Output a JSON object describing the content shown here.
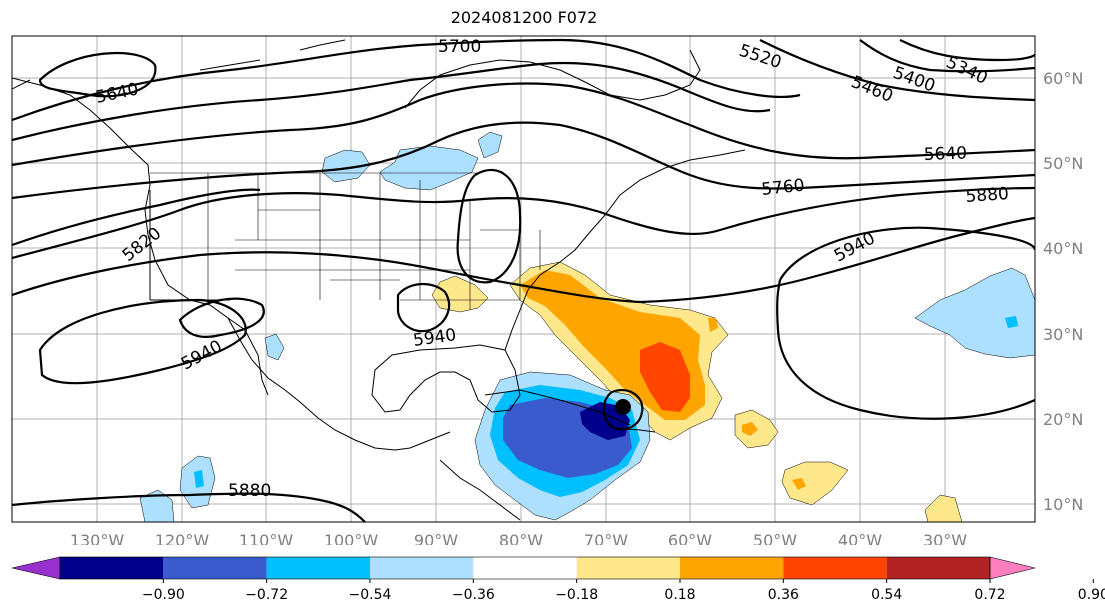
{
  "title": "2024081200 F072",
  "longitude_labels": [
    "130°W",
    "120°W",
    "110°W",
    "100°W",
    "90°W",
    "80°W",
    "70°W",
    "60°W",
    "50°W",
    "40°W",
    "30°W"
  ],
  "latitude_labels": [
    "10°N",
    "20°N",
    "30°N",
    "40°N",
    "50°N",
    "60°N"
  ],
  "contour_labels": [
    "5700",
    "5520",
    "5400",
    "5340",
    "5460",
    "5640",
    "5640",
    "5760",
    "5880",
    "5940",
    "5820",
    "5940",
    "5940",
    "5880"
  ],
  "colorbar": {
    "tick_labels": [
      "−0.90",
      "−0.72",
      "−0.54",
      "−0.36",
      "−0.18",
      "0.18",
      "0.36",
      "0.54",
      "0.72",
      "0.90"
    ],
    "colors": [
      "#9932CC",
      "#00008B",
      "#3A5BCD",
      "#00BFFF",
      "#ADDFFF",
      "#FFFFFF",
      "#FFE88C",
      "#FFA500",
      "#FF4500",
      "#B22222",
      "#FF80C0"
    ]
  },
  "map_colors": {
    "gridline": "#b0b0b0",
    "contour": "#000000",
    "border": "#000000"
  }
}
